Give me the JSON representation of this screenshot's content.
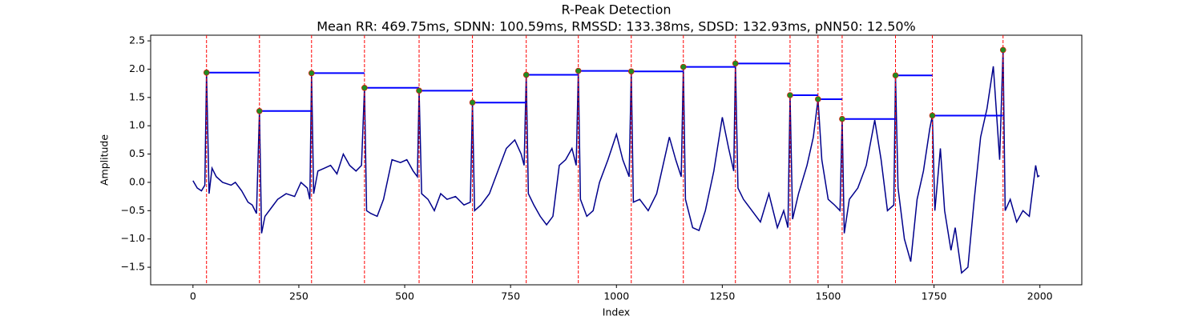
{
  "chart_data": {
    "type": "line",
    "title": "R-Peak Detection",
    "subtitle": "Mean RR: 469.75ms, SDNN: 100.59ms, RMSSD: 133.38ms, SDSD: 132.93ms, pNN50: 12.50%",
    "x_label": "Index",
    "y_label": "Amplitude",
    "xlim": [
      -99.95,
      2098.95
    ],
    "ylim": [
      -1.81,
      2.6
    ],
    "xticks": [
      0,
      250,
      500,
      750,
      1000,
      1250,
      1500,
      1750,
      2000
    ],
    "yticks": [
      {
        "value": -1.5,
        "label": "−1.5"
      },
      {
        "value": -1,
        "label": "−1.0"
      },
      {
        "value": -0.5,
        "label": "−0.5"
      },
      {
        "value": 0,
        "label": "0.0"
      },
      0.5,
      {
        "value": 1,
        "label": "1.0"
      },
      1.5,
      {
        "value": 2,
        "label": "2.0"
      },
      2.5
    ],
    "signal": {
      "color": "#00008b",
      "x": [
        0,
        10,
        20,
        28,
        32,
        38,
        45,
        55,
        70,
        90,
        100,
        115,
        130,
        140,
        150,
        157,
        162,
        170,
        190,
        200,
        220,
        240,
        255,
        270,
        276,
        280,
        285,
        295,
        310,
        325,
        340,
        355,
        370,
        385,
        398,
        405,
        410,
        420,
        435,
        450,
        470,
        490,
        505,
        520,
        530,
        534,
        540,
        555,
        570,
        585,
        600,
        620,
        640,
        655,
        660,
        665,
        680,
        700,
        720,
        740,
        760,
        775,
        782,
        787,
        792,
        805,
        820,
        835,
        850,
        865,
        880,
        895,
        905,
        910,
        915,
        930,
        945,
        960,
        980,
        1000,
        1015,
        1030,
        1035,
        1040,
        1055,
        1075,
        1095,
        1110,
        1125,
        1140,
        1153,
        1158,
        1163,
        1180,
        1195,
        1210,
        1230,
        1250,
        1265,
        1277,
        1281,
        1287,
        1300,
        1320,
        1340,
        1360,
        1380,
        1395,
        1405,
        1410,
        1416,
        1430,
        1450,
        1465,
        1476,
        1485,
        1500,
        1515,
        1528,
        1533,
        1538,
        1550,
        1570,
        1590,
        1610,
        1625,
        1640,
        1655,
        1659,
        1665,
        1680,
        1695,
        1710,
        1725,
        1740,
        1746,
        1752,
        1765,
        1775,
        1790,
        1800,
        1815,
        1830,
        1845,
        1860,
        1875,
        1890,
        1905,
        1913,
        1918,
        1930,
        1945,
        1960,
        1975,
        1990,
        1995,
        1999
      ],
      "values": [
        0.03,
        -0.1,
        -0.15,
        -0.05,
        1.94,
        -0.2,
        0.25,
        0.1,
        0.0,
        -0.05,
        0.0,
        -0.15,
        -0.35,
        -0.4,
        -0.55,
        1.26,
        -0.9,
        -0.6,
        -0.4,
        -0.3,
        -0.2,
        -0.25,
        0.0,
        -0.1,
        -0.3,
        1.93,
        -0.2,
        0.2,
        0.25,
        0.3,
        0.15,
        0.5,
        0.3,
        0.2,
        0.3,
        1.67,
        -0.5,
        -0.55,
        -0.6,
        -0.3,
        0.4,
        0.35,
        0.4,
        0.2,
        0.1,
        1.62,
        -0.2,
        -0.3,
        -0.5,
        -0.2,
        -0.3,
        -0.25,
        -0.4,
        -0.35,
        1.41,
        -0.5,
        -0.4,
        -0.2,
        0.2,
        0.6,
        0.75,
        0.5,
        0.3,
        1.9,
        -0.2,
        -0.4,
        -0.6,
        -0.75,
        -0.6,
        0.3,
        0.4,
        0.6,
        0.3,
        1.97,
        -0.3,
        -0.6,
        -0.5,
        0.0,
        0.4,
        0.85,
        0.4,
        0.1,
        1.96,
        -0.35,
        -0.3,
        -0.5,
        -0.2,
        0.3,
        0.8,
        0.4,
        0.1,
        2.04,
        -0.3,
        -0.8,
        -0.85,
        -0.5,
        0.2,
        1.15,
        0.6,
        0.2,
        2.1,
        -0.1,
        -0.3,
        -0.5,
        -0.7,
        -0.2,
        -0.8,
        -0.5,
        -0.8,
        1.54,
        -0.65,
        -0.2,
        0.3,
        0.8,
        1.47,
        0.4,
        -0.3,
        -0.4,
        -0.5,
        1.12,
        -0.9,
        -0.3,
        -0.1,
        0.3,
        1.1,
        0.4,
        -0.5,
        -0.4,
        1.89,
        -0.1,
        -1.0,
        -1.4,
        -0.3,
        0.2,
        0.95,
        1.18,
        -0.5,
        0.6,
        -0.5,
        -1.2,
        -0.8,
        -1.6,
        -1.5,
        -0.3,
        0.8,
        1.3,
        2.05,
        0.4,
        2.34,
        -0.5,
        -0.3,
        -0.7,
        -0.5,
        -0.6,
        0.3,
        0.1,
        0.12
      ]
    },
    "peaks": {
      "color": "#228b22",
      "line_color": "#ff0000",
      "level_color": "#0000ff",
      "x": [
        32,
        157,
        280,
        405,
        534,
        660,
        787,
        910,
        1035,
        1158,
        1281,
        1410,
        1476,
        1533,
        1659,
        1746,
        1913
      ],
      "values": [
        1.94,
        1.26,
        1.93,
        1.67,
        1.62,
        1.41,
        1.9,
        1.97,
        1.96,
        2.04,
        2.1,
        1.54,
        1.47,
        1.12,
        1.89,
        1.18,
        2.34
      ]
    }
  }
}
